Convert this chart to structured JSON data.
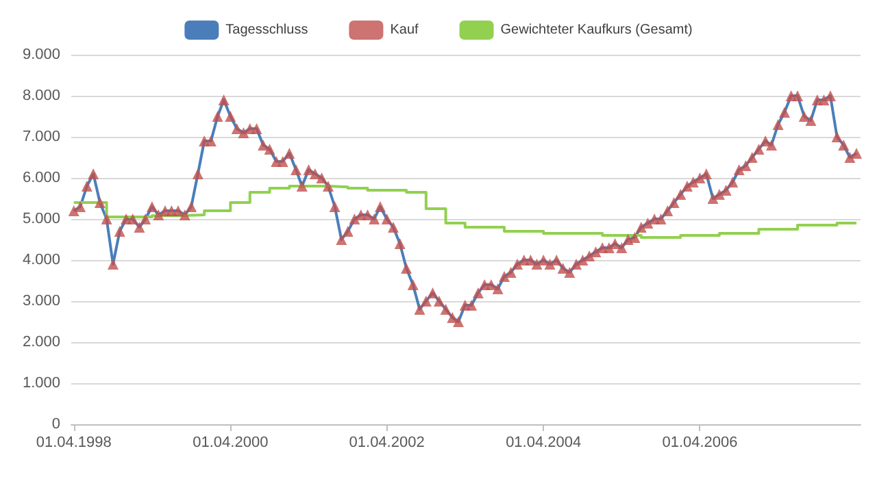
{
  "chart_data": {
    "type": "line",
    "legend": "top",
    "grid": "y",
    "xlim": [
      "1998-03-20",
      "2008-04-20"
    ],
    "xticks": [
      {
        "value": "1998-04-01",
        "label": "01.04.1998"
      },
      {
        "value": "2000-04-01",
        "label": "01.04.2000"
      },
      {
        "value": "2002-04-01",
        "label": "01.04.2002"
      },
      {
        "value": "2004-04-01",
        "label": "01.04.2004"
      },
      {
        "value": "2006-04-01",
        "label": "01.04.2006"
      }
    ],
    "ylim": [
      0,
      9000
    ],
    "yticks": [
      {
        "value": 0,
        "label": "0"
      },
      {
        "value": 1000,
        "label": "1.000"
      },
      {
        "value": 2000,
        "label": "2.000"
      },
      {
        "value": 3000,
        "label": "3.000"
      },
      {
        "value": 4000,
        "label": "4.000"
      },
      {
        "value": 5000,
        "label": "5.000"
      },
      {
        "value": 6000,
        "label": "6.000"
      },
      {
        "value": 7000,
        "label": "7.000"
      },
      {
        "value": 8000,
        "label": "8.000"
      },
      {
        "value": 9000,
        "label": "9.000"
      }
    ],
    "x": [
      "1998-04",
      "1998-05",
      "1998-06",
      "1998-07",
      "1998-08",
      "1998-09",
      "1998-10",
      "1998-11",
      "1998-12",
      "1999-01",
      "1999-02",
      "1999-03",
      "1999-04",
      "1999-05",
      "1999-06",
      "1999-07",
      "1999-08",
      "1999-09",
      "1999-10",
      "1999-11",
      "1999-12",
      "2000-01",
      "2000-02",
      "2000-03",
      "2000-04",
      "2000-05",
      "2000-06",
      "2000-07",
      "2000-08",
      "2000-09",
      "2000-10",
      "2000-11",
      "2000-12",
      "2001-01",
      "2001-02",
      "2001-03",
      "2001-04",
      "2001-05",
      "2001-06",
      "2001-07",
      "2001-08",
      "2001-09",
      "2001-10",
      "2001-11",
      "2001-12",
      "2002-01",
      "2002-02",
      "2002-03",
      "2002-04",
      "2002-05",
      "2002-06",
      "2002-07",
      "2002-08",
      "2002-09",
      "2002-10",
      "2002-11",
      "2002-12",
      "2003-01",
      "2003-02",
      "2003-03",
      "2003-04",
      "2003-05",
      "2003-06",
      "2003-07",
      "2003-08",
      "2003-09",
      "2003-10",
      "2003-11",
      "2003-12",
      "2004-01",
      "2004-02",
      "2004-03",
      "2004-04",
      "2004-05",
      "2004-06",
      "2004-07",
      "2004-08",
      "2004-09",
      "2004-10",
      "2004-11",
      "2004-12",
      "2005-01",
      "2005-02",
      "2005-03",
      "2005-04",
      "2005-05",
      "2005-06",
      "2005-07",
      "2005-08",
      "2005-09",
      "2005-10",
      "2005-11",
      "2005-12",
      "2006-01",
      "2006-02",
      "2006-03",
      "2006-04",
      "2006-05",
      "2006-06",
      "2006-07",
      "2006-08",
      "2006-09",
      "2006-10",
      "2006-11",
      "2006-12",
      "2007-01",
      "2007-02",
      "2007-03",
      "2007-04",
      "2007-05",
      "2007-06",
      "2007-07",
      "2007-08",
      "2007-09",
      "2007-10",
      "2007-11",
      "2007-12",
      "2008-01",
      "2008-02",
      "2008-03",
      "2008-04"
    ],
    "series": [
      {
        "name": "Tagesschluss",
        "type": "line",
        "marker": "none",
        "color": "#4a7ebb",
        "values": [
          5200,
          5300,
          5800,
          6100,
          5400,
          5000,
          3900,
          4700,
          5000,
          5000,
          4800,
          5000,
          5300,
          5100,
          5200,
          5200,
          5200,
          5100,
          5300,
          6100,
          6900,
          6900,
          7500,
          7900,
          7500,
          7200,
          7100,
          7200,
          7200,
          6800,
          6700,
          6400,
          6400,
          6600,
          6200,
          5800,
          6200,
          6100,
          6000,
          5800,
          5300,
          4500,
          4700,
          5000,
          5100,
          5100,
          5000,
          5300,
          5000,
          4800,
          4400,
          3800,
          3400,
          2800,
          3000,
          3200,
          3000,
          2800,
          2600,
          2500,
          2900,
          2900,
          3200,
          3400,
          3400,
          3300,
          3600,
          3700,
          3900,
          4000,
          4000,
          3900,
          4000,
          3900,
          4000,
          3800,
          3700,
          3900,
          4000,
          4100,
          4200,
          4300,
          4300,
          4400,
          4300,
          4500,
          4550,
          4800,
          4900,
          5000,
          5000,
          5200,
          5400,
          5600,
          5800,
          5900,
          6000,
          6100,
          5500,
          5600,
          5700,
          5900,
          6200,
          6300,
          6500,
          6700,
          6900,
          6800,
          7300,
          7600,
          8000,
          8000,
          7500,
          7400,
          7900,
          7900,
          8000,
          7000,
          6800,
          6500,
          6600
        ]
      },
      {
        "name": "Kauf",
        "type": "scatter",
        "marker": "triangle",
        "color": "#c0504d",
        "values": [
          5200,
          5300,
          5800,
          6100,
          5400,
          5000,
          3900,
          4700,
          5000,
          5000,
          4800,
          5000,
          5300,
          5100,
          5200,
          5200,
          5200,
          5100,
          5300,
          6100,
          6900,
          6900,
          7500,
          7900,
          7500,
          7200,
          7100,
          7200,
          7200,
          6800,
          6700,
          6400,
          6400,
          6600,
          6200,
          5800,
          6200,
          6100,
          6000,
          5800,
          5300,
          4500,
          4700,
          5000,
          5100,
          5100,
          5000,
          5300,
          5000,
          4800,
          4400,
          3800,
          3400,
          2800,
          3000,
          3200,
          3000,
          2800,
          2600,
          2500,
          2900,
          2900,
          3200,
          3400,
          3400,
          3300,
          3600,
          3700,
          3900,
          4000,
          4000,
          3900,
          4000,
          3900,
          4000,
          3800,
          3700,
          3900,
          4000,
          4100,
          4200,
          4300,
          4300,
          4400,
          4300,
          4500,
          4550,
          4800,
          4900,
          5000,
          5000,
          5200,
          5400,
          5600,
          5800,
          5900,
          6000,
          6100,
          5500,
          5600,
          5700,
          5900,
          6200,
          6300,
          6500,
          6700,
          6900,
          6800,
          7300,
          7600,
          8000,
          8000,
          7500,
          7400,
          7900,
          7900,
          8000,
          7000,
          6800,
          6500,
          6600
        ]
      },
      {
        "name": "Gewichteter Kaufkurs (Gesamt)",
        "type": "step",
        "marker": "none",
        "color": "#92d050",
        "x": [
          "1998-04",
          "1998-09",
          "1999-04",
          "1999-08",
          "1999-12",
          "2000-04",
          "2000-07",
          "2000-10",
          "2001-01",
          "2001-07",
          "2001-10",
          "2002-01",
          "2002-04",
          "2002-07",
          "2002-10",
          "2003-01",
          "2003-04",
          "2003-10",
          "2004-04",
          "2005-01",
          "2005-07",
          "2006-01",
          "2006-07",
          "2007-01",
          "2007-07",
          "2008-01",
          "2008-04"
        ],
        "values": [
          5400,
          5050,
          5080,
          5100,
          5200,
          5400,
          5650,
          5750,
          5800,
          5780,
          5750,
          5700,
          5700,
          5650,
          5250,
          4900,
          4800,
          4700,
          4650,
          4600,
          4550,
          4600,
          4650,
          4750,
          4850,
          4900,
          4900
        ]
      }
    ]
  }
}
